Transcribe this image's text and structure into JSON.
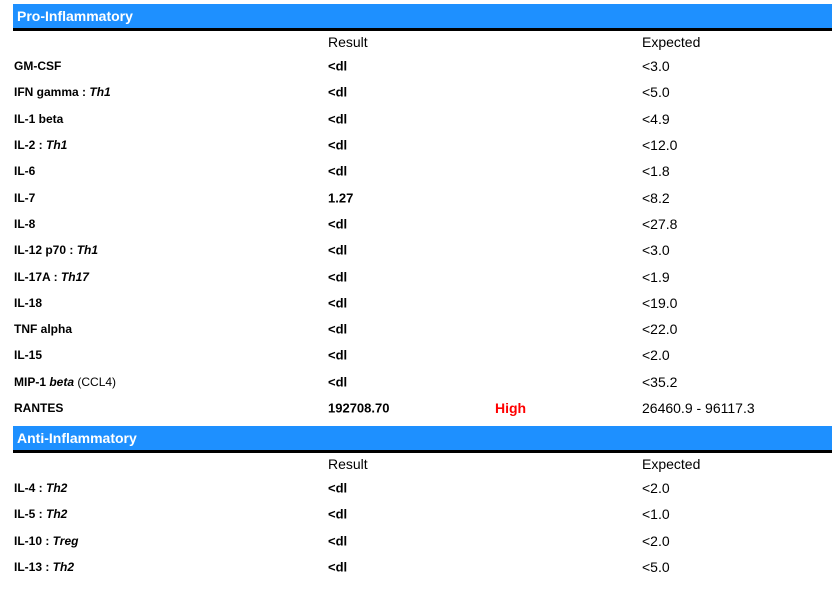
{
  "sections": [
    {
      "title": "Pro-Inflammatory",
      "result_label": "Result",
      "expected_label": "Expected",
      "rows": [
        {
          "name": "GM-CSF",
          "tag": "",
          "result": "<dl",
          "status": "",
          "expected": "<3.0"
        },
        {
          "name": "IFN gamma : ",
          "tag": "Th1",
          "result": "<dl",
          "status": "",
          "expected": "<5.0"
        },
        {
          "name": "IL-1 beta",
          "tag": "",
          "result": "<dl",
          "status": "",
          "expected": "<4.9"
        },
        {
          "name": "IL-2 : ",
          "tag": "Th1",
          "result": "<dl",
          "status": "",
          "expected": "<12.0"
        },
        {
          "name": "IL-6",
          "tag": "",
          "result": "<dl",
          "status": "",
          "expected": "<1.8"
        },
        {
          "name": "IL-7",
          "tag": "",
          "result": "1.27",
          "status": "",
          "expected": "<8.2"
        },
        {
          "name": "IL-8",
          "tag": "",
          "result": "<dl",
          "status": "",
          "expected": "<27.8"
        },
        {
          "name": "IL-12 p70 : ",
          "tag": "Th1",
          "result": "<dl",
          "status": "",
          "expected": "<3.0"
        },
        {
          "name": "IL-17A : ",
          "tag": "Th17",
          "result": "<dl",
          "status": "",
          "expected": "<1.9"
        },
        {
          "name": "IL-18",
          "tag": "",
          "result": "<dl",
          "status": "",
          "expected": "<19.0"
        },
        {
          "name": "TNF alpha",
          "tag": "",
          "result": "<dl",
          "status": "",
          "expected": "<22.0"
        },
        {
          "name": "IL-15",
          "tag": "",
          "result": "<dl",
          "status": "",
          "expected": "<2.0"
        },
        {
          "name": "MIP-1 ",
          "tag": "beta",
          "suffix": " (CCL4)",
          "result": "<dl",
          "status": "",
          "expected": "<35.2"
        },
        {
          "name": "RANTES",
          "tag": "",
          "result": "192708.70",
          "status": "High",
          "expected": "26460.9 - 96117.3"
        }
      ]
    },
    {
      "title": "Anti-Inflammatory",
      "result_label": "Result",
      "expected_label": "Expected",
      "rows": [
        {
          "name": "IL-4 : ",
          "tag": "Th2",
          "result": "<dl",
          "status": "",
          "expected": "<2.0"
        },
        {
          "name": "IL-5 : ",
          "tag": "Th2",
          "result": "<dl",
          "status": "",
          "expected": "<1.0"
        },
        {
          "name": "IL-10 : ",
          "tag": "Treg",
          "result": "<dl",
          "status": "",
          "expected": "<2.0"
        },
        {
          "name": "IL-13 : ",
          "tag": "Th2",
          "result": "<dl",
          "status": "",
          "expected": "<5.0"
        }
      ]
    }
  ],
  "colors": {
    "header_bar": "#1e90ff",
    "high_flag": "#ff0000"
  }
}
